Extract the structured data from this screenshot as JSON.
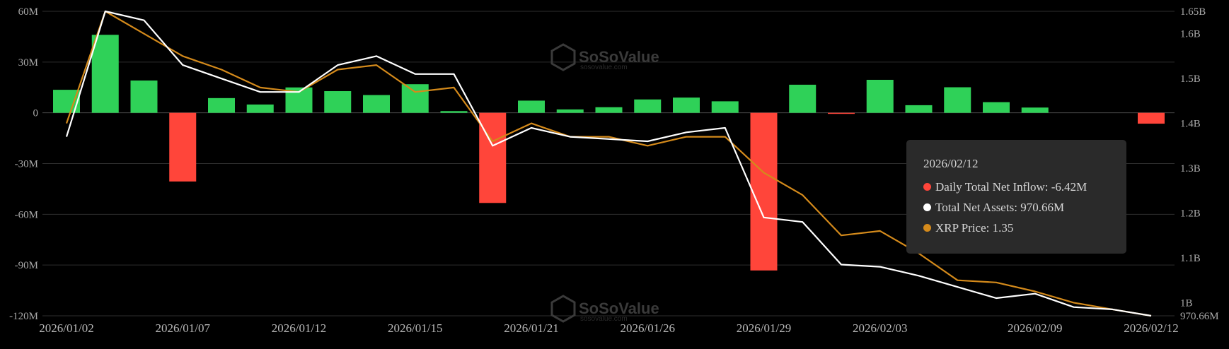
{
  "watermark": {
    "brand": "SoSoValue",
    "url": "sosovalue.com"
  },
  "colors": {
    "inflow_positive": "#2fd158",
    "inflow_negative": "#ff453a",
    "net_assets_line": "#ffffff",
    "price_line": "#d48a1b",
    "grid": "#2e2e2e"
  },
  "chart_data": {
    "type": "bar",
    "title": "",
    "x": [
      "2026/01/02",
      "2026/01/05",
      "2026/01/06",
      "2026/01/07",
      "2026/01/08",
      "2026/01/09",
      "2026/01/12",
      "2026/01/13",
      "2026/01/14",
      "2026/01/15",
      "2026/01/16",
      "2026/01/20",
      "2026/01/21",
      "2026/01/22",
      "2026/01/23",
      "2026/01/26",
      "2026/01/27",
      "2026/01/28",
      "2026/01/29",
      "2026/01/30",
      "2026/02/02",
      "2026/02/03",
      "2026/02/04",
      "2026/02/05",
      "2026/02/06",
      "2026/02/09",
      "2026/02/10",
      "2026/02/11",
      "2026/02/12"
    ],
    "x_tick_labels": [
      "2026/01/02",
      "2026/01/07",
      "2026/01/12",
      "2026/01/15",
      "2026/01/21",
      "2026/01/26",
      "2026/01/29",
      "2026/02/03",
      "2026/02/09",
      "2026/02/12"
    ],
    "series": [
      {
        "name": "Daily Total Net Inflow",
        "axis": "left",
        "type": "bar",
        "values": [
          13.6,
          46.1,
          19.1,
          -40.6,
          8.7,
          4.9,
          15.0,
          12.8,
          10.5,
          16.9,
          1.0,
          -53.3,
          7.2,
          2.0,
          3.3,
          7.9,
          9.0,
          6.8,
          -93.2,
          16.6,
          -0.3,
          19.5,
          4.5,
          15.1,
          6.3,
          3.1,
          0,
          0,
          -6.42
        ]
      },
      {
        "name": "Total Net Assets",
        "axis": "right",
        "type": "line",
        "values": [
          1.37,
          1.65,
          1.63,
          1.53,
          1.5,
          1.47,
          1.47,
          1.53,
          1.55,
          1.51,
          1.51,
          1.35,
          1.39,
          1.37,
          1.365,
          1.36,
          1.38,
          1.39,
          1.19,
          1.18,
          1.085,
          1.08,
          1.06,
          1.035,
          1.01,
          1.02,
          0.99,
          0.985,
          0.97066
        ]
      },
      {
        "name": "XRP Price",
        "axis": "right",
        "type": "line",
        "values": [
          1.4,
          1.65,
          1.6,
          1.55,
          1.52,
          1.48,
          1.47,
          1.52,
          1.53,
          1.47,
          1.48,
          1.36,
          1.4,
          1.37,
          1.37,
          1.35,
          1.37,
          1.37,
          1.29,
          1.24,
          1.15,
          1.16,
          1.11,
          1.05,
          1.045,
          1.025,
          1.0,
          0.985,
          0.97066
        ]
      }
    ],
    "y_left": {
      "ticks": [
        "60M",
        "30M",
        "0",
        "-30M",
        "-60M",
        "-90M",
        "-120M"
      ],
      "lim": [
        -120,
        60
      ]
    },
    "y_right": {
      "ticks": [
        "1.65B",
        "1.6B",
        "1.5B",
        "1.4B",
        "1.3B",
        "1.2B",
        "1.1B",
        "1B",
        "970.66M"
      ],
      "lim": [
        0.97066,
        1.65
      ]
    },
    "grid": true,
    "legend": "tooltip"
  },
  "tooltip": {
    "date": "2026/02/12",
    "rows": [
      {
        "label": "Daily Total Net Inflow",
        "value": "-6.42M",
        "color": "#ff453a"
      },
      {
        "label": "Total Net Assets",
        "value": "970.66M",
        "color": "#ffffff"
      },
      {
        "label": "XRP Price",
        "value": "1.35",
        "color": "#d48a1b"
      }
    ]
  }
}
